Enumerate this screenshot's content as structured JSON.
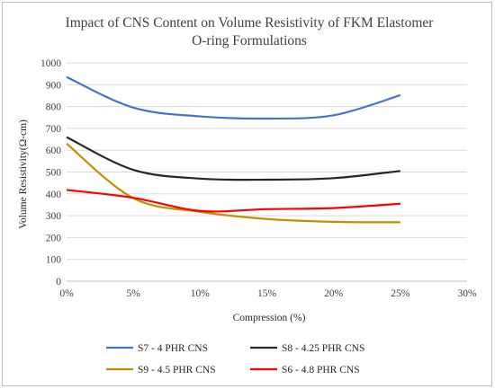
{
  "chart_data": {
    "type": "line",
    "title_line1": "Impact of CNS Content on Volume Resistivity of FKM Elastomer",
    "title_line2": "O-ring Formulations",
    "xlabel": "Compression (%)",
    "ylabel": "Volume Resistivity(Ω-cm)",
    "xlim": [
      0,
      30
    ],
    "ylim": [
      0,
      1000
    ],
    "xticks": [
      0,
      5,
      10,
      15,
      20,
      25,
      30
    ],
    "xtick_labels": [
      "0%",
      "5%",
      "10%",
      "15%",
      "20%",
      "25%",
      "30%"
    ],
    "yticks": [
      0,
      100,
      200,
      300,
      400,
      500,
      600,
      700,
      800,
      900,
      1000
    ],
    "ytick_labels": [
      "0",
      "100",
      "200",
      "300",
      "400",
      "500",
      "600",
      "700",
      "800",
      "900",
      "1000"
    ],
    "grid": true,
    "legend_position": "bottom",
    "x": [
      0,
      5,
      10,
      15,
      20,
      25
    ],
    "series": [
      {
        "name": "S7 - 4 PHR CNS",
        "color": "#4472c4",
        "values": [
          935,
          795,
          755,
          745,
          760,
          852
        ]
      },
      {
        "name": "S8 - 4.25 PHR CNS",
        "color": "#262626",
        "values": [
          660,
          510,
          470,
          465,
          472,
          505
        ]
      },
      {
        "name": "S9 - 4.5 PHR CNS",
        "color": "#bf9000",
        "values": [
          630,
          380,
          318,
          285,
          272,
          270
        ]
      },
      {
        "name": "S6 - 4.8 PHR CNS",
        "color": "#ff0000",
        "values": [
          418,
          382,
          322,
          330,
          335,
          355
        ]
      }
    ]
  }
}
